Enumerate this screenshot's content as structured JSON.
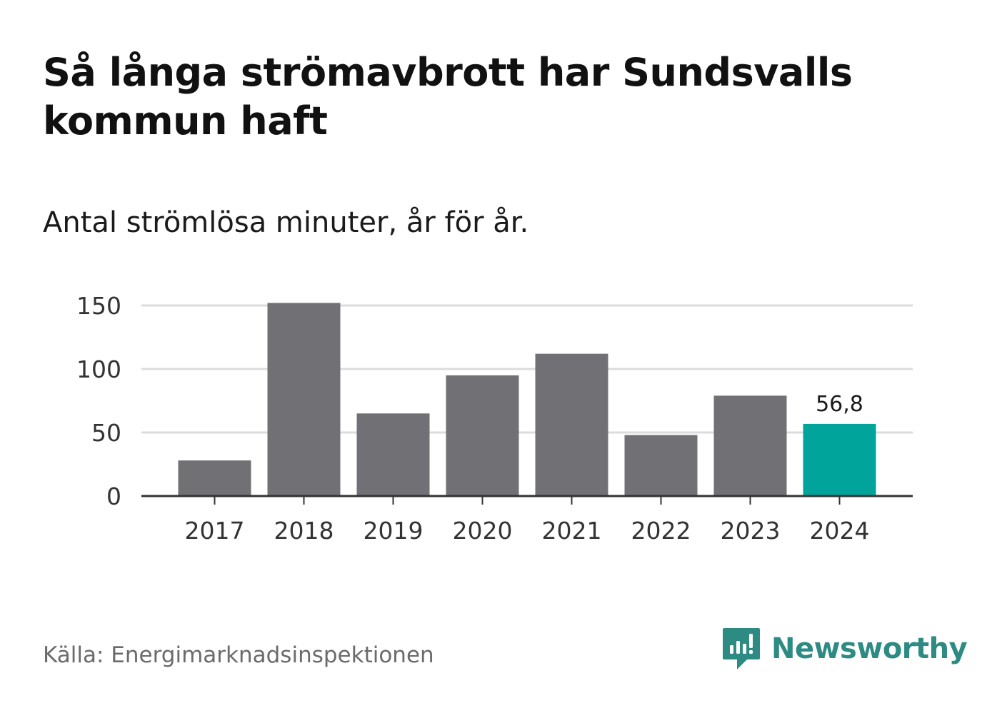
{
  "title": "Så långa strömavbrott har Sundsvalls kommun haft",
  "subtitle": "Antal strömlösa minuter, år för år.",
  "source": "Källa: Energimarknadsinspektionen",
  "brand": "Newsworthy",
  "colors": {
    "bar": "#717075",
    "highlight": "#00a49a",
    "grid": "#dcdcdc",
    "axis": "#333333",
    "brand": "#2e8b84"
  },
  "chart_data": {
    "type": "bar",
    "title": "Så långa strömavbrott har Sundsvalls kommun haft",
    "subtitle": "Antal strömlösa minuter, år för år.",
    "xlabel": "",
    "ylabel": "",
    "categories": [
      "2017",
      "2018",
      "2019",
      "2020",
      "2021",
      "2022",
      "2023",
      "2024"
    ],
    "values": [
      28,
      152,
      65,
      95,
      112,
      48,
      79,
      56.8
    ],
    "highlight_index": 7,
    "data_labels": [
      {
        "index": 7,
        "text": "56,8"
      }
    ],
    "ylim": [
      0,
      150
    ],
    "yticks": [
      0,
      50,
      100,
      150
    ],
    "grid": true
  }
}
